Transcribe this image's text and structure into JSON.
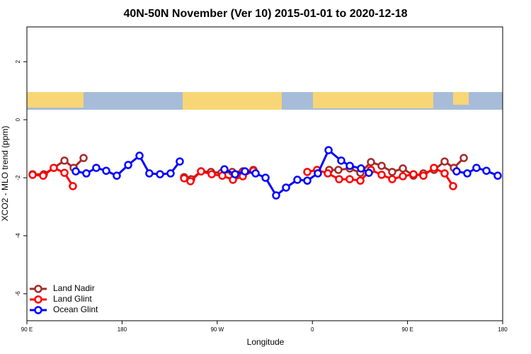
{
  "chart_data": {
    "type": "line",
    "title": "40N-50N November (Ver 10)   2015-01-01 to 2020-12-18",
    "xlabel": "Longitude",
    "ylabel": "XCO2 - MLO trend (ppm)",
    "xlim": [
      90,
      540
    ],
    "xticks": [
      {
        "value": 90,
        "label": "90 E"
      },
      {
        "value": 180,
        "label": "180"
      },
      {
        "value": 270,
        "label": "90 W"
      },
      {
        "value": 360,
        "label": "0"
      },
      {
        "value": 450,
        "label": "90 E"
      },
      {
        "value": 540,
        "label": "180"
      }
    ],
    "ylim": [
      -6.93,
      3.2
    ],
    "yticks": [
      -6,
      -4,
      -2,
      0,
      2
    ],
    "legend": "bottom-left",
    "series": [
      {
        "name": "Land Nadir",
        "color": "#a52a2a",
        "x": [
          95.4,
          106,
          115.4,
          125.5,
          134.2,
          143.6,
          null,
          238.7,
          245.4,
          254.7,
          264.1,
          274.1,
          284.2,
          294.2,
          304.2,
          null,
          375.9,
          384.6,
          395.4,
          405.4,
          415.4,
          425.5,
          435.5,
          445.6,
          455.6,
          465,
          475.1,
          485.1,
          493.8,
          503.2
        ],
        "values": [
          -1.88,
          -1.88,
          -1.66,
          -1.41,
          -1.66,
          -1.32,
          null,
          -1.98,
          -2.05,
          -1.78,
          -1.8,
          -1.83,
          -1.8,
          -1.78,
          -1.73,
          null,
          -1.73,
          -1.73,
          -1.68,
          -1.83,
          -1.46,
          -1.59,
          -1.8,
          -1.68,
          -1.93,
          -1.85,
          -1.73,
          -1.44,
          -1.66,
          -1.32
        ]
      },
      {
        "name": "Land Glint",
        "color": "#ff0000",
        "x": [
          95.4,
          105.4,
          115.4,
          125.5,
          133.5,
          null,
          238.7,
          244.7,
          254.7,
          264.8,
          274.8,
          284.9,
          294.2,
          304.3,
          null,
          355.2,
          364.5,
          374.6,
          385.3,
          395.3,
          405.4,
          415.4,
          425.5,
          435.5,
          445.6,
          455.6,
          465,
          475,
          485.1,
          493.1
        ],
        "values": [
          -1.9,
          -1.93,
          -1.66,
          -1.83,
          -2.29,
          null,
          -2.02,
          -2.12,
          -1.78,
          -1.88,
          -1.93,
          -2.07,
          -1.95,
          -1.76,
          null,
          -1.8,
          -1.73,
          -1.85,
          -2.05,
          -2.05,
          -2.1,
          -1.73,
          -1.9,
          -2.05,
          -1.95,
          -1.88,
          -1.93,
          -1.66,
          -1.85,
          -2.29
        ]
      },
      {
        "name": "Ocean Glint",
        "color": "#0000ff",
        "x": [
          136.2,
          146.2,
          155.6,
          165,
          175,
          185.8,
          196.5,
          205.8,
          215.9,
          225.9,
          234.6,
          null,
          276.8,
          286.9,
          296.2,
          306.3,
          315.7,
          325.7,
          335.1,
          345.8,
          355.2,
          365.2,
          375.3,
          387.3,
          395.4,
          406,
          413.4,
          null,
          496.4,
          506.5,
          515.2,
          524.6,
          535.3
        ],
        "values": [
          -1.78,
          -1.85,
          -1.66,
          -1.76,
          -1.93,
          -1.56,
          -1.24,
          -1.85,
          -1.88,
          -1.85,
          -1.44,
          null,
          -1.71,
          -1.88,
          -1.78,
          -1.85,
          -2.0,
          -2.61,
          -2.34,
          -2.07,
          -2.1,
          -1.85,
          -1.05,
          -1.41,
          -1.59,
          -1.68,
          -1.83,
          null,
          -1.78,
          -1.85,
          -1.66,
          -1.76,
          -1.93
        ]
      }
    ]
  }
}
